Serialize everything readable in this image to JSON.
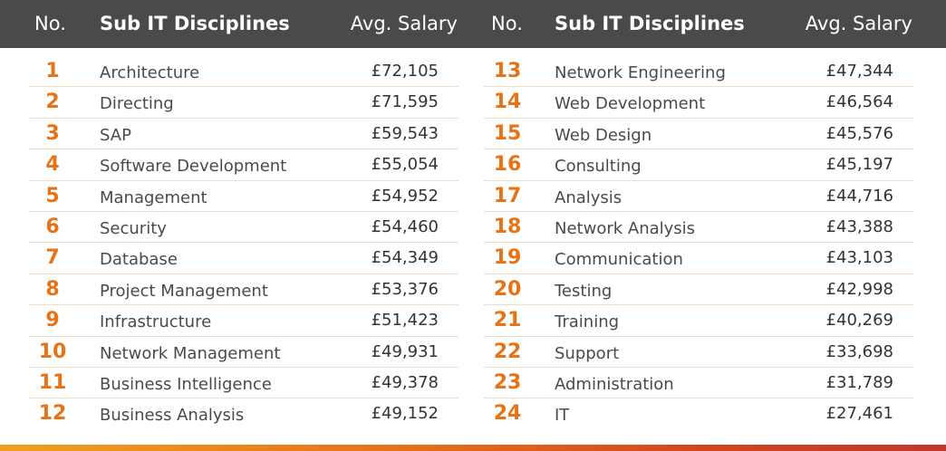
{
  "header": {
    "no_label": "No.",
    "discipline_label": "Sub IT Disciplines",
    "salary_label": "Avg. Salary"
  },
  "colors": {
    "header_bg": "#4a4a4a",
    "rank_color": "#e87316",
    "divider": "#f3dcc3",
    "bottom_bar_start": "#f0a020",
    "bottom_bar_end": "#c0392b"
  },
  "chart_data": {
    "type": "table",
    "columns": [
      "No.",
      "Sub IT Disciplines",
      "Avg. Salary"
    ],
    "rows": [
      {
        "rank": "1",
        "discipline": "Architecture",
        "salary": "£72,105"
      },
      {
        "rank": "2",
        "discipline": "Directing",
        "salary": "£71,595"
      },
      {
        "rank": "3",
        "discipline": "SAP",
        "salary": "£59,543"
      },
      {
        "rank": "4",
        "discipline": "Software Development",
        "salary": "£55,054"
      },
      {
        "rank": "5",
        "discipline": "Management",
        "salary": "£54,952"
      },
      {
        "rank": "6",
        "discipline": "Security",
        "salary": "£54,460"
      },
      {
        "rank": "7",
        "discipline": "Database",
        "salary": "£54,349"
      },
      {
        "rank": "8",
        "discipline": "Project Management",
        "salary": "£53,376"
      },
      {
        "rank": "9",
        "discipline": "Infrastructure",
        "salary": "£51,423"
      },
      {
        "rank": "10",
        "discipline": "Network Management",
        "salary": "£49,931"
      },
      {
        "rank": "11",
        "discipline": "Business Intelligence",
        "salary": "£49,378"
      },
      {
        "rank": "12",
        "discipline": "Business Analysis",
        "salary": "£49,152"
      },
      {
        "rank": "13",
        "discipline": "Network Engineering",
        "salary": "£47,344"
      },
      {
        "rank": "14",
        "discipline": "Web Development",
        "salary": "£46,564"
      },
      {
        "rank": "15",
        "discipline": "Web Design",
        "salary": "£45,576"
      },
      {
        "rank": "16",
        "discipline": "Consulting",
        "salary": "£45,197"
      },
      {
        "rank": "17",
        "discipline": "Analysis",
        "salary": "£44,716"
      },
      {
        "rank": "18",
        "discipline": "Network Analysis",
        "salary": "£43,388"
      },
      {
        "rank": "19",
        "discipline": "Communication",
        "salary": "£43,103"
      },
      {
        "rank": "20",
        "discipline": "Testing",
        "salary": "£42,998"
      },
      {
        "rank": "21",
        "discipline": "Training",
        "salary": "£40,269"
      },
      {
        "rank": "22",
        "discipline": "Support",
        "salary": "£33,698"
      },
      {
        "rank": "23",
        "discipline": "Administration",
        "salary": "£31,789"
      },
      {
        "rank": "24",
        "discipline": "IT",
        "salary": "£27,461"
      }
    ]
  }
}
